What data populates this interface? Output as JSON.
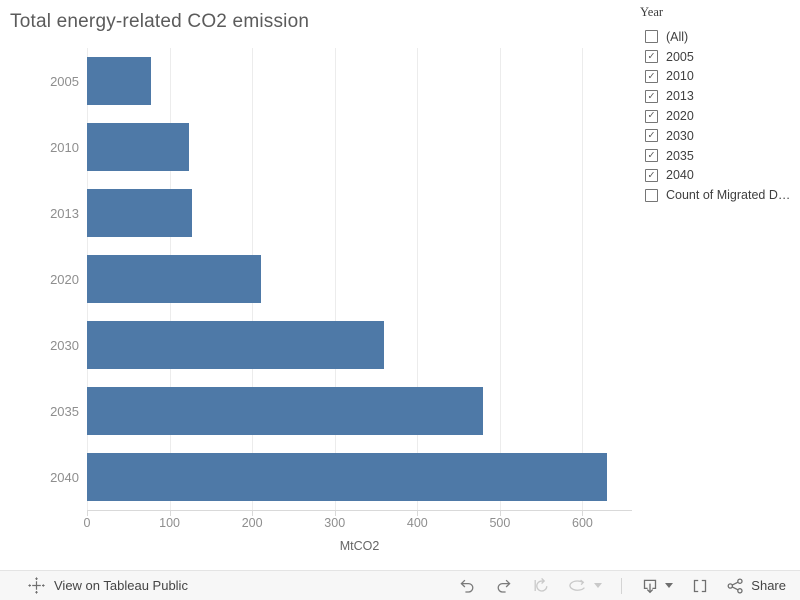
{
  "chart_data": {
    "type": "bar",
    "orientation": "horizontal",
    "title": "Total energy-related CO2 emission",
    "categories": [
      "2005",
      "2010",
      "2013",
      "2020",
      "2030",
      "2035",
      "2040"
    ],
    "values": [
      77,
      123,
      127,
      211,
      360,
      479,
      630
    ],
    "xlabel": "MtCO2",
    "xticks": [
      0,
      100,
      200,
      300,
      400,
      500,
      600
    ],
    "xlim": [
      0,
      660
    ],
    "grid": true,
    "legend": "none",
    "bar_color": "#4e79a7"
  },
  "filter": {
    "title": "Year",
    "items": [
      {
        "label": "(All)",
        "checked": false
      },
      {
        "label": "2005",
        "checked": true
      },
      {
        "label": "2010",
        "checked": true
      },
      {
        "label": "2013",
        "checked": true
      },
      {
        "label": "2020",
        "checked": true
      },
      {
        "label": "2030",
        "checked": true
      },
      {
        "label": "2035",
        "checked": true
      },
      {
        "label": "2040",
        "checked": true
      },
      {
        "label": "Count of Migrated Da...",
        "checked": false
      }
    ]
  },
  "toolbar": {
    "brand_label": "View on Tableau Public",
    "share_label": "Share",
    "check_glyph": "✓"
  },
  "colors": {
    "bar": "#4e79a7",
    "grid_line": "#ececec",
    "axis_line": "#d9d9d9",
    "tick_label": "#8e8e8e",
    "chart_title": "#5b5b5b",
    "toolbar_bg": "#f7f7f7",
    "icon_enabled": "#7a7a7a",
    "icon_disabled": "#c9c9c9"
  }
}
